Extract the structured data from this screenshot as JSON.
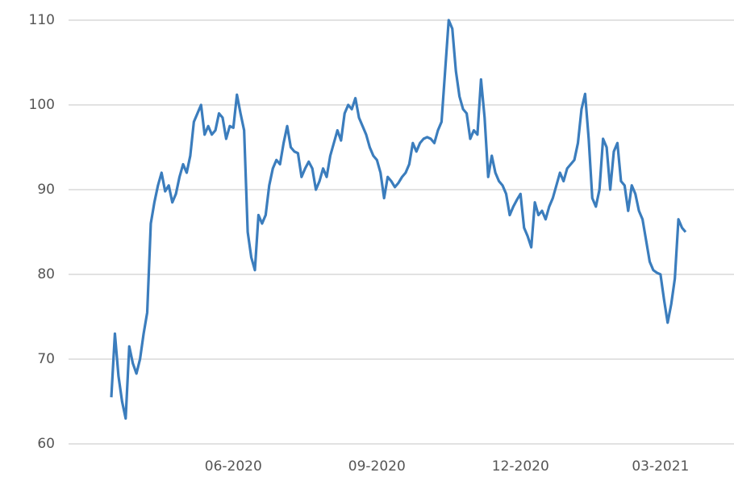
{
  "chart_data": {
    "type": "line",
    "categories": [
      null,
      null,
      null,
      null,
      null,
      null,
      null,
      null,
      null,
      null,
      null,
      null,
      null,
      null,
      null,
      null,
      null,
      null,
      null,
      null,
      null,
      null,
      null,
      null,
      null,
      null,
      null,
      null,
      null,
      null,
      null,
      null,
      null,
      null,
      "06-2020",
      null,
      null,
      null,
      null,
      null,
      null,
      null,
      null,
      null,
      null,
      null,
      null,
      null,
      null,
      null,
      null,
      null,
      null,
      null,
      null,
      null,
      null,
      null,
      null,
      null,
      null,
      null,
      null,
      null,
      null,
      null,
      null,
      null,
      null,
      null,
      null,
      null,
      null,
      null,
      "09-2020",
      null,
      null,
      null,
      null,
      null,
      null,
      null,
      null,
      null,
      null,
      null,
      null,
      null,
      null,
      null,
      null,
      null,
      null,
      null,
      null,
      null,
      null,
      null,
      null,
      null,
      null,
      null,
      null,
      null,
      null,
      null,
      null,
      null,
      null,
      null,
      null,
      null,
      null,
      null,
      "12-2020",
      null,
      null,
      null,
      null,
      null,
      null,
      null,
      null,
      null,
      null,
      null,
      null,
      null,
      null,
      null,
      null,
      null,
      null,
      null,
      null,
      null,
      null,
      null,
      null,
      null,
      null,
      null,
      null,
      null,
      null,
      null,
      null,
      null,
      null,
      null,
      null,
      null,
      null,
      "03-2021",
      null,
      null,
      null,
      null,
      null,
      null,
      null
    ],
    "values": [
      65.5,
      73,
      68,
      65,
      63,
      71.5,
      69.5,
      68.3,
      70,
      73,
      75.5,
      86,
      88.5,
      90.5,
      92,
      89.8,
      90.5,
      88.5,
      89.5,
      91.5,
      93,
      92,
      94,
      98,
      99,
      100,
      96.5,
      97.5,
      96.5,
      97,
      99,
      98.5,
      96,
      97.5,
      97.3,
      101.2,
      99,
      97,
      85,
      82,
      80.5,
      87,
      86,
      87,
      90.5,
      92.5,
      93.5,
      93,
      95.5,
      97.5,
      95,
      94.5,
      94.3,
      91.5,
      92.5,
      93.3,
      92.5,
      90,
      91,
      92.5,
      91.5,
      94,
      95.5,
      97,
      95.8,
      99,
      100,
      99.5,
      100.8,
      98.5,
      97.5,
      96.5,
      95,
      94,
      93.5,
      92,
      89,
      91.5,
      91,
      90.3,
      90.8,
      91.5,
      92,
      93,
      95.5,
      94.5,
      95.5,
      96,
      96.2,
      96,
      95.5,
      97,
      98,
      104,
      110,
      109,
      104,
      101,
      99.5,
      99,
      96,
      97,
      96.5,
      103,
      98.5,
      91.5,
      94,
      92,
      91,
      90.5,
      89.5,
      87,
      88,
      88.8,
      89.5,
      85.5,
      84.5,
      83.2,
      88.5,
      87,
      87.5,
      86.5,
      88,
      89,
      90.5,
      92,
      91,
      92.5,
      93,
      93.5,
      95.5,
      99.5,
      101.3,
      96,
      89,
      88,
      90,
      96,
      95,
      90,
      94.5,
      95.5,
      91,
      90.5,
      87.5,
      90.5,
      89.5,
      87.5,
      86.5,
      84,
      81.5,
      80.5,
      80.2,
      80,
      77,
      74.3,
      76.5,
      79.5,
      86.5,
      85.5,
      85
    ],
    "color": "#3b7dbd",
    "ylim": [
      60,
      110
    ],
    "yticks": [
      60,
      70,
      80,
      90,
      100,
      110
    ],
    "grid": true
  }
}
